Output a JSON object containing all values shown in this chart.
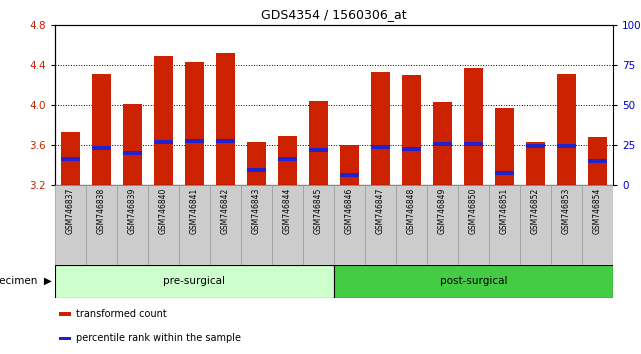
{
  "title": "GDS4354 / 1560306_at",
  "samples": [
    "GSM746837",
    "GSM746838",
    "GSM746839",
    "GSM746840",
    "GSM746841",
    "GSM746842",
    "GSM746843",
    "GSM746844",
    "GSM746845",
    "GSM746846",
    "GSM746847",
    "GSM746848",
    "GSM746849",
    "GSM746850",
    "GSM746851",
    "GSM746852",
    "GSM746853",
    "GSM746854"
  ],
  "bar_heights": [
    3.73,
    4.31,
    4.01,
    4.49,
    4.43,
    4.52,
    3.63,
    3.69,
    4.04,
    3.6,
    4.33,
    4.3,
    4.03,
    4.37,
    3.97,
    3.63,
    4.31,
    3.68
  ],
  "blue_marker_pos": [
    3.46,
    3.57,
    3.52,
    3.63,
    3.64,
    3.64,
    3.35,
    3.46,
    3.55,
    3.3,
    3.58,
    3.56,
    3.61,
    3.61,
    3.32,
    3.59,
    3.59,
    3.44
  ],
  "ylim_left": [
    3.2,
    4.8
  ],
  "ylim_right": [
    0,
    100
  ],
  "yticks_left": [
    3.2,
    3.6,
    4.0,
    4.4,
    4.8
  ],
  "yticks_right": [
    0,
    25,
    50,
    75,
    100
  ],
  "bar_color": "#cc2200",
  "blue_color": "#2222cc",
  "groups": [
    {
      "label": "pre-surgical",
      "start": 0,
      "end": 9,
      "color": "#ccffcc"
    },
    {
      "label": "post-surgical",
      "start": 9,
      "end": 18,
      "color": "#44cc44"
    }
  ],
  "legend_items": [
    {
      "label": "transformed count",
      "color": "#cc2200"
    },
    {
      "label": "percentile rank within the sample",
      "color": "#2222cc"
    }
  ],
  "specimen_label": "specimen",
  "background_color": "#ffffff",
  "xlabels_bg": "#cccccc",
  "tick_label_color_left": "#cc2200",
  "tick_label_color_right": "#0000cc"
}
